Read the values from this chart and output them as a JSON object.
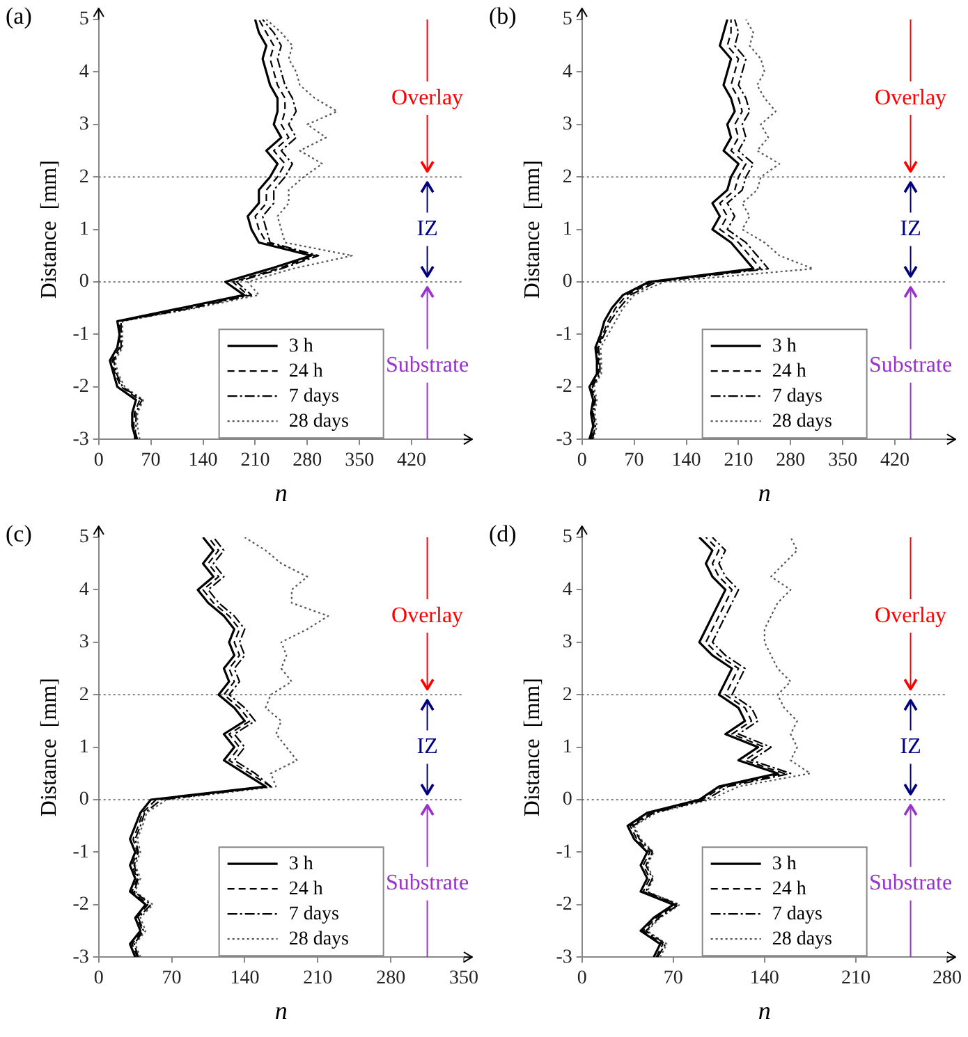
{
  "chart_data": [
    {
      "type": "line",
      "title": "(a)",
      "xlabel": "n",
      "ylabel": "Distance  [mm]",
      "xlim": [
        0,
        490
      ],
      "xticks": [
        0,
        70,
        140,
        210,
        280,
        350,
        420
      ],
      "ylim": [
        -3,
        5
      ],
      "yticks": [
        -3,
        -2,
        -1,
        0,
        1,
        2,
        3,
        4,
        5
      ],
      "legend": "bottom right",
      "ref_lines": [
        {
          "axis": "y",
          "value": 2,
          "color": "#555555",
          "line_style": "dotted"
        },
        {
          "axis": "y",
          "value": 0,
          "color": "#555555",
          "line_style": "dotted"
        }
      ],
      "annotations": [
        {
          "text": "Overlay",
          "x": 441,
          "y": 2
        },
        {
          "text": "IZ",
          "x": 441,
          "y": 0
        },
        {
          "text": "Substrate",
          "x": 441,
          "y": 0
        }
      ],
      "series": [
        {
          "name": "3 h",
          "color": "#000000",
          "line_style": "solid",
          "x": [
            50,
            45,
            45,
            50,
            25,
            20,
            15,
            25,
            28,
            25,
            110,
            195,
            170,
            230,
            285,
            215,
            205,
            200,
            215,
            215,
            230,
            240,
            225,
            245,
            235,
            240,
            240,
            230,
            225,
            220,
            225,
            215,
            210
          ],
          "values": [
            -3,
            -2.75,
            -2.5,
            -2.25,
            -2,
            -1.75,
            -1.5,
            -1.25,
            -1,
            -0.75,
            -0.5,
            -0.25,
            0,
            0.25,
            0.5,
            0.75,
            1,
            1.25,
            1.5,
            1.75,
            2,
            2.25,
            2.5,
            2.75,
            3,
            3.25,
            3.5,
            3.75,
            4,
            4.25,
            4.5,
            4.75,
            5
          ]
        },
        {
          "name": "24 h",
          "color": "#000000",
          "line_style": "dashed",
          "x": [
            52,
            47,
            48,
            55,
            30,
            22,
            18,
            28,
            28,
            28,
            120,
            200,
            180,
            240,
            290,
            225,
            215,
            210,
            225,
            225,
            240,
            250,
            235,
            255,
            245,
            250,
            250,
            240,
            235,
            230,
            235,
            225,
            215
          ],
          "values": [
            -3,
            -2.75,
            -2.5,
            -2.25,
            -2,
            -1.75,
            -1.5,
            -1.25,
            -1,
            -0.75,
            -0.5,
            -0.25,
            0,
            0.25,
            0.5,
            0.75,
            1,
            1.25,
            1.5,
            1.75,
            2,
            2.25,
            2.5,
            2.75,
            3,
            3.25,
            3.5,
            3.75,
            4,
            4.25,
            4.5,
            4.75,
            5
          ]
        },
        {
          "name": "7 days",
          "color": "#000000",
          "line_style": "dashdot",
          "x": [
            48,
            50,
            50,
            58,
            32,
            24,
            20,
            30,
            30,
            30,
            125,
            205,
            185,
            245,
            295,
            230,
            225,
            220,
            235,
            235,
            250,
            260,
            245,
            265,
            255,
            265,
            260,
            250,
            245,
            240,
            245,
            235,
            220
          ],
          "values": [
            -3,
            -2.75,
            -2.5,
            -2.25,
            -2,
            -1.75,
            -1.5,
            -1.25,
            -1,
            -0.75,
            -0.5,
            -0.25,
            0,
            0.25,
            0.5,
            0.75,
            1,
            1.25,
            1.5,
            1.75,
            2,
            2.25,
            2.5,
            2.75,
            3,
            3.25,
            3.5,
            3.75,
            4,
            4.25,
            4.5,
            4.75,
            5
          ]
        },
        {
          "name": "28 days",
          "color": "#555555",
          "line_style": "dotted",
          "x": [
            55,
            52,
            52,
            60,
            35,
            26,
            22,
            32,
            32,
            32,
            130,
            215,
            200,
            260,
            340,
            250,
            245,
            240,
            255,
            255,
            275,
            300,
            270,
            305,
            280,
            320,
            290,
            270,
            265,
            255,
            260,
            245,
            225
          ],
          "values": [
            -3,
            -2.75,
            -2.5,
            -2.25,
            -2,
            -1.75,
            -1.5,
            -1.25,
            -1,
            -0.75,
            -0.5,
            -0.25,
            0,
            0.25,
            0.5,
            0.75,
            1,
            1.25,
            1.5,
            1.75,
            2,
            2.25,
            2.5,
            2.75,
            3,
            3.25,
            3.5,
            3.75,
            4,
            4.25,
            4.5,
            4.75,
            5
          ]
        }
      ]
    },
    {
      "type": "line",
      "title": "(b)",
      "xlabel": "n",
      "ylabel": "Distance  [mm]",
      "xlim": [
        0,
        490
      ],
      "xticks": [
        0,
        70,
        140,
        210,
        280,
        350,
        420
      ],
      "ylim": [
        -3,
        5
      ],
      "yticks": [
        -3,
        -2,
        -1,
        0,
        1,
        2,
        3,
        4,
        5
      ],
      "legend": "bottom right",
      "ref_lines": [
        {
          "axis": "y",
          "value": 2,
          "color": "#555555",
          "line_style": "dotted"
        },
        {
          "axis": "y",
          "value": 0,
          "color": "#555555",
          "line_style": "dotted"
        }
      ],
      "annotations": [
        {
          "text": "Overlay",
          "x": 441,
          "y": 2
        },
        {
          "text": "IZ",
          "x": 441,
          "y": 0
        },
        {
          "text": "Substrate",
          "x": 441,
          "y": 0
        }
      ],
      "series": [
        {
          "name": "3 h",
          "color": "#000000",
          "line_style": "solid",
          "x": [
            10,
            15,
            12,
            15,
            10,
            20,
            20,
            18,
            25,
            30,
            40,
            55,
            90,
            230,
            215,
            200,
            175,
            185,
            175,
            195,
            200,
            210,
            190,
            200,
            195,
            205,
            200,
            190,
            195,
            200,
            185,
            190,
            195
          ],
          "values": [
            -3,
            -2.75,
            -2.5,
            -2.25,
            -2,
            -1.75,
            -1.5,
            -1.25,
            -1,
            -0.75,
            -0.5,
            -0.25,
            0,
            0.25,
            0.5,
            0.75,
            1,
            1.25,
            1.5,
            1.75,
            2,
            2.25,
            2.5,
            2.75,
            3,
            3.25,
            3.5,
            3.75,
            4,
            4.25,
            4.5,
            4.75,
            5
          ]
        },
        {
          "name": "24 h",
          "color": "#000000",
          "line_style": "dashed",
          "x": [
            12,
            16,
            14,
            17,
            12,
            22,
            22,
            20,
            28,
            35,
            45,
            60,
            95,
            240,
            225,
            210,
            185,
            195,
            185,
            205,
            210,
            220,
            200,
            210,
            205,
            215,
            210,
            200,
            205,
            210,
            195,
            200,
            200
          ],
          "values": [
            -3,
            -2.75,
            -2.5,
            -2.25,
            -2,
            -1.75,
            -1.5,
            -1.25,
            -1,
            -0.75,
            -0.5,
            -0.25,
            0,
            0.25,
            0.5,
            0.75,
            1,
            1.25,
            1.5,
            1.75,
            2,
            2.25,
            2.5,
            2.75,
            3,
            3.25,
            3.5,
            3.75,
            4,
            4.25,
            4.5,
            4.75,
            5
          ]
        },
        {
          "name": "7 days",
          "color": "#000000",
          "line_style": "dashdot",
          "x": [
            14,
            18,
            15,
            18,
            14,
            24,
            24,
            22,
            30,
            38,
            50,
            65,
            100,
            250,
            235,
            220,
            195,
            205,
            195,
            215,
            220,
            230,
            210,
            220,
            215,
            225,
            220,
            210,
            215,
            220,
            205,
            210,
            205
          ],
          "values": [
            -3,
            -2.75,
            -2.5,
            -2.25,
            -2,
            -1.75,
            -1.5,
            -1.25,
            -1,
            -0.75,
            -0.5,
            -0.25,
            0,
            0.25,
            0.5,
            0.75,
            1,
            1.25,
            1.5,
            1.75,
            2,
            2.25,
            2.5,
            2.75,
            3,
            3.25,
            3.5,
            3.75,
            4,
            4.25,
            4.5,
            4.75,
            5
          ]
        },
        {
          "name": "28 days",
          "color": "#555555",
          "line_style": "dotted",
          "x": [
            15,
            20,
            17,
            20,
            16,
            26,
            26,
            25,
            35,
            45,
            55,
            70,
            110,
            310,
            265,
            245,
            215,
            225,
            215,
            235,
            240,
            265,
            235,
            250,
            240,
            260,
            245,
            235,
            245,
            240,
            225,
            230,
            220
          ],
          "values": [
            -3,
            -2.75,
            -2.5,
            -2.25,
            -2,
            -1.75,
            -1.5,
            -1.25,
            -1,
            -0.75,
            -0.5,
            -0.25,
            0,
            0.25,
            0.5,
            0.75,
            1,
            1.25,
            1.5,
            1.75,
            2,
            2.25,
            2.5,
            2.75,
            3,
            3.25,
            3.5,
            3.75,
            4,
            4.25,
            4.5,
            4.75,
            5
          ]
        }
      ]
    },
    {
      "type": "line",
      "title": "(c)",
      "xlabel": "n",
      "ylabel": "Distance  [mm]",
      "xlim": [
        0,
        350
      ],
      "xticks": [
        0,
        70,
        140,
        210,
        280,
        350
      ],
      "ylim": [
        -3,
        5
      ],
      "yticks": [
        -3,
        -2,
        -1,
        0,
        1,
        2,
        3,
        4,
        5
      ],
      "legend": "bottom right",
      "ref_lines": [
        {
          "axis": "y",
          "value": 2,
          "color": "#555555",
          "line_style": "dotted"
        },
        {
          "axis": "y",
          "value": 0,
          "color": "#555555",
          "line_style": "dotted"
        }
      ],
      "annotations": [
        {
          "text": "Overlay",
          "x": 315,
          "y": 2
        },
        {
          "text": "IZ",
          "x": 315,
          "y": 0
        },
        {
          "text": "Substrate",
          "x": 315,
          "y": 0
        }
      ],
      "series": [
        {
          "name": "3 h",
          "color": "#000000",
          "line_style": "solid",
          "x": [
            35,
            30,
            40,
            35,
            45,
            30,
            35,
            30,
            35,
            30,
            35,
            40,
            50,
            160,
            140,
            120,
            130,
            120,
            140,
            130,
            115,
            125,
            120,
            130,
            125,
            130,
            120,
            105,
            95,
            110,
            100,
            110,
            100
          ],
          "values": [
            -3,
            -2.75,
            -2.5,
            -2.25,
            -2,
            -1.75,
            -1.5,
            -1.25,
            -1,
            -0.75,
            -0.5,
            -0.25,
            0,
            0.25,
            0.5,
            0.75,
            1,
            1.25,
            1.5,
            1.75,
            2,
            2.25,
            2.5,
            2.75,
            3,
            3.25,
            3.5,
            3.75,
            4,
            4.25,
            4.5,
            4.75,
            5
          ]
        },
        {
          "name": "24 h",
          "color": "#000000",
          "line_style": "dashed",
          "x": [
            37,
            32,
            42,
            37,
            47,
            32,
            37,
            32,
            37,
            33,
            38,
            42,
            55,
            165,
            145,
            125,
            135,
            125,
            145,
            135,
            120,
            130,
            125,
            135,
            130,
            135,
            125,
            110,
            100,
            115,
            105,
            115,
            105
          ],
          "values": [
            -3,
            -2.75,
            -2.5,
            -2.25,
            -2,
            -1.75,
            -1.5,
            -1.25,
            -1,
            -0.75,
            -0.5,
            -0.25,
            0,
            0.25,
            0.5,
            0.75,
            1,
            1.25,
            1.5,
            1.75,
            2,
            2.25,
            2.5,
            2.75,
            3,
            3.25,
            3.5,
            3.75,
            4,
            4.25,
            4.5,
            4.75,
            5
          ]
        },
        {
          "name": "7 days",
          "color": "#000000",
          "line_style": "dashdot",
          "x": [
            38,
            34,
            43,
            38,
            50,
            34,
            38,
            34,
            38,
            35,
            40,
            44,
            60,
            165,
            150,
            130,
            140,
            130,
            150,
            140,
            125,
            135,
            130,
            140,
            135,
            140,
            130,
            115,
            105,
            120,
            110,
            120,
            110
          ],
          "values": [
            -3,
            -2.75,
            -2.5,
            -2.25,
            -2,
            -1.75,
            -1.5,
            -1.25,
            -1,
            -0.75,
            -0.5,
            -0.25,
            0,
            0.25,
            0.5,
            0.75,
            1,
            1.25,
            1.5,
            1.75,
            2,
            2.25,
            2.5,
            2.75,
            3,
            3.25,
            3.5,
            3.75,
            4,
            4.25,
            4.5,
            4.75,
            5
          ]
        },
        {
          "name": "28 days",
          "color": "#555555",
          "line_style": "dotted",
          "x": [
            40,
            35,
            45,
            40,
            52,
            35,
            40,
            35,
            40,
            37,
            42,
            46,
            65,
            170,
            165,
            190,
            180,
            170,
            175,
            160,
            165,
            185,
            175,
            180,
            175,
            200,
            220,
            185,
            185,
            200,
            175,
            160,
            140
          ],
          "values": [
            -3,
            -2.75,
            -2.5,
            -2.25,
            -2,
            -1.75,
            -1.5,
            -1.25,
            -1,
            -0.75,
            -0.5,
            -0.25,
            0,
            0.25,
            0.5,
            0.75,
            1,
            1.25,
            1.5,
            1.75,
            2,
            2.25,
            2.5,
            2.75,
            3,
            3.25,
            3.5,
            3.75,
            4,
            4.25,
            4.5,
            4.75,
            5
          ]
        }
      ]
    },
    {
      "type": "line",
      "title": "(d)",
      "xlabel": "n",
      "ylabel": "Distance  [mm]",
      "xlim": [
        0,
        280
      ],
      "xticks": [
        0,
        70,
        140,
        210,
        280
      ],
      "ylim": [
        -3,
        5
      ],
      "yticks": [
        -3,
        -2,
        -1,
        0,
        1,
        2,
        3,
        4,
        5
      ],
      "legend": "bottom right",
      "ref_lines": [
        {
          "axis": "y",
          "value": 2,
          "color": "#555555",
          "line_style": "dotted"
        },
        {
          "axis": "y",
          "value": 0,
          "color": "#555555",
          "line_style": "dotted"
        }
      ],
      "annotations": [
        {
          "text": "Overlay",
          "x": 252,
          "y": 2
        },
        {
          "text": "IZ",
          "x": 252,
          "y": 0
        },
        {
          "text": "Substrate",
          "x": 252,
          "y": 0
        }
      ],
      "series": [
        {
          "name": "3 h",
          "color": "#000000",
          "line_style": "solid",
          "x": [
            55,
            60,
            45,
            55,
            70,
            45,
            50,
            45,
            50,
            40,
            35,
            50,
            90,
            105,
            150,
            120,
            135,
            110,
            125,
            120,
            105,
            110,
            115,
            100,
            90,
            95,
            100,
            105,
            110,
            100,
            95,
            100,
            90
          ],
          "values": [
            -3,
            -2.75,
            -2.5,
            -2.25,
            -2,
            -1.75,
            -1.5,
            -1.25,
            -1,
            -0.75,
            -0.5,
            -0.25,
            0,
            0.25,
            0.5,
            0.75,
            1,
            1.25,
            1.5,
            1.75,
            2,
            2.25,
            2.5,
            2.75,
            3,
            3.25,
            3.5,
            3.75,
            4,
            4.25,
            4.5,
            4.75,
            5
          ]
        },
        {
          "name": "24 h",
          "color": "#000000",
          "line_style": "dashed",
          "x": [
            57,
            62,
            47,
            57,
            72,
            47,
            52,
            47,
            52,
            42,
            37,
            53,
            92,
            108,
            155,
            125,
            140,
            115,
            130,
            125,
            110,
            115,
            120,
            105,
            95,
            100,
            105,
            110,
            115,
            105,
            100,
            105,
            95
          ],
          "values": [
            -3,
            -2.75,
            -2.5,
            -2.25,
            -2,
            -1.75,
            -1.5,
            -1.25,
            -1,
            -0.75,
            -0.5,
            -0.25,
            0,
            0.25,
            0.5,
            0.75,
            1,
            1.25,
            1.5,
            1.75,
            2,
            2.25,
            2.5,
            2.75,
            3,
            3.25,
            3.5,
            3.75,
            4,
            4.25,
            4.5,
            4.75,
            5
          ]
        },
        {
          "name": "7 days",
          "color": "#000000",
          "line_style": "dashdot",
          "x": [
            58,
            64,
            49,
            59,
            74,
            49,
            54,
            49,
            54,
            44,
            39,
            55,
            95,
            112,
            160,
            130,
            145,
            120,
            135,
            130,
            115,
            120,
            125,
            110,
            100,
            105,
            110,
            115,
            120,
            110,
            105,
            110,
            100
          ],
          "values": [
            -3,
            -2.75,
            -2.5,
            -2.25,
            -2,
            -1.75,
            -1.5,
            -1.25,
            -1,
            -0.75,
            -0.5,
            -0.25,
            0,
            0.25,
            0.5,
            0.75,
            1,
            1.25,
            1.5,
            1.75,
            2,
            2.25,
            2.5,
            2.75,
            3,
            3.25,
            3.5,
            3.75,
            4,
            4.25,
            4.5,
            4.75,
            5
          ]
        },
        {
          "name": "28 days",
          "color": "#555555",
          "line_style": "dotted",
          "x": [
            60,
            65,
            50,
            60,
            75,
            50,
            55,
            50,
            55,
            45,
            40,
            57,
            98,
            120,
            175,
            160,
            165,
            160,
            165,
            155,
            150,
            160,
            150,
            145,
            140,
            140,
            145,
            150,
            160,
            145,
            155,
            165,
            160
          ],
          "values": [
            -3,
            -2.75,
            -2.5,
            -2.25,
            -2,
            -1.75,
            -1.5,
            -1.25,
            -1,
            -0.75,
            -0.5,
            -0.25,
            0,
            0.25,
            0.5,
            0.75,
            1,
            1.25,
            1.5,
            1.75,
            2,
            2.25,
            2.5,
            2.75,
            3,
            3.25,
            3.5,
            3.75,
            4,
            4.25,
            4.5,
            4.75,
            5
          ]
        }
      ]
    }
  ]
}
